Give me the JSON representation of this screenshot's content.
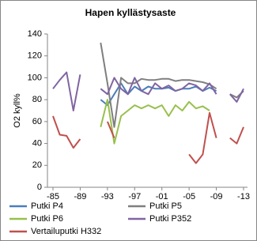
{
  "chart_data": {
    "type": "line",
    "title": "Hapen kyllästysaste",
    "y_label": "O2 kyll%",
    "x": [
      1985,
      1986,
      1987,
      1988,
      1989,
      1990,
      1991,
      1992,
      1993,
      1994,
      1995,
      1996,
      1997,
      1998,
      1999,
      2000,
      2001,
      2002,
      2003,
      2004,
      2005,
      2006,
      2007,
      2008,
      2009,
      2010,
      2011,
      2012,
      2013
    ],
    "xlim": [
      1985,
      2013
    ],
    "xticks": [
      {
        "value": 1985,
        "label": "-85"
      },
      {
        "value": 1989,
        "label": "-89"
      },
      {
        "value": 1993,
        "label": "-93"
      },
      {
        "value": 1997,
        "label": "-97"
      },
      {
        "value": 2001,
        "label": "-01"
      },
      {
        "value": 2005,
        "label": "-05"
      },
      {
        "value": 2009,
        "label": "-09"
      },
      {
        "value": 2013,
        "label": "-13"
      }
    ],
    "ylim": [
      0,
      140
    ],
    "yticks": [
      0,
      20,
      40,
      60,
      80,
      100,
      120,
      140
    ],
    "series": [
      {
        "name": "Putki P4",
        "color": "#4a7ebb",
        "values": [
          null,
          null,
          null,
          null,
          null,
          null,
          null,
          80,
          75,
          85,
          95,
          85,
          92,
          88,
          92,
          90,
          90,
          91,
          88,
          90,
          90,
          92,
          88,
          91,
          88,
          null,
          null,
          null,
          null
        ]
      },
      {
        "name": "Putki P5",
        "color": "#7f7f7f",
        "values": [
          null,
          null,
          null,
          null,
          null,
          null,
          null,
          132,
          95,
          55,
          100,
          95,
          95,
          99,
          98,
          98,
          99,
          99,
          97,
          98,
          98,
          97,
          96,
          94,
          90,
          null,
          85,
          82,
          88
        ]
      },
      {
        "name": "Putki P6",
        "color": "#98c04c",
        "values": [
          null,
          null,
          null,
          null,
          null,
          null,
          null,
          55,
          80,
          40,
          65,
          70,
          75,
          72,
          75,
          72,
          75,
          65,
          75,
          70,
          78,
          72,
          74,
          70,
          null,
          null,
          null,
          null,
          null
        ]
      },
      {
        "name": "Putki P352",
        "color": "#8064a2",
        "values": [
          90,
          98,
          105,
          70,
          103,
          null,
          null,
          90,
          85,
          100,
          90,
          85,
          100,
          88,
          85,
          95,
          90,
          93,
          88,
          90,
          95,
          93,
          88,
          95,
          85,
          null,
          85,
          78,
          90
        ]
      },
      {
        "name": "Vertailuputki H332",
        "color": "#c0504d",
        "values": [
          65,
          48,
          47,
          36,
          44,
          null,
          null,
          null,
          60,
          45,
          null,
          null,
          null,
          null,
          null,
          null,
          null,
          null,
          null,
          null,
          30,
          22,
          30,
          68,
          45,
          null,
          45,
          40,
          55
        ]
      }
    ]
  }
}
